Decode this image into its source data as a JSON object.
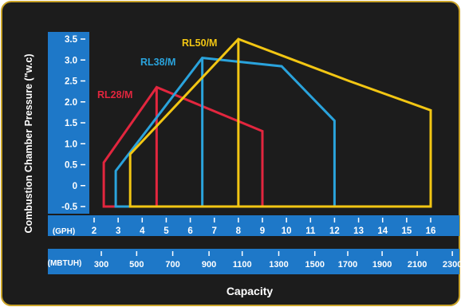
{
  "chart_data": {
    "type": "area",
    "ylabel": "Combustion Chamber Pressure (\"w.c)",
    "xlabel": "Capacity",
    "x_axis_label": "(GPH)",
    "x2_axis_label": "(MBTUH)",
    "yticks": [
      "3.5",
      "3.0",
      "2.5",
      "2.0",
      "1.5",
      "1.0",
      "0.5",
      "0",
      "-0.5"
    ],
    "ytick_values": [
      3.5,
      3.0,
      2.5,
      2.0,
      1.5,
      1.0,
      0.5,
      0,
      -0.5
    ],
    "ylim": [
      -0.5,
      3.5
    ],
    "xticks": [
      "2",
      "3",
      "4",
      "5",
      "6",
      "7",
      "8",
      "9",
      "10",
      "11",
      "12",
      "13",
      "14",
      "15",
      "16"
    ],
    "xtick_values": [
      2,
      3,
      4,
      5,
      6,
      7,
      8,
      9,
      10,
      11,
      12,
      13,
      14,
      15,
      16
    ],
    "xlim": [
      2,
      16
    ],
    "x2ticks": [
      "300",
      "500",
      "700",
      "900",
      "1100",
      "1300",
      "1500",
      "1700",
      "1900",
      "2100",
      "2300"
    ],
    "x2tick_values": [
      2.3,
      3.77,
      5.27,
      6.78,
      8.16,
      9.68,
      11.18,
      12.55,
      13.98,
      15.44,
      16.9
    ],
    "series": [
      {
        "name": "RL28/M",
        "color": "#e2263e",
        "points": [
          [
            2.4,
            -0.5
          ],
          [
            2.4,
            0.55
          ],
          [
            4.6,
            2.35
          ],
          [
            9.0,
            1.3
          ],
          [
            9.0,
            -0.5
          ]
        ],
        "divider_x": 4.6
      },
      {
        "name": "RL38/M",
        "color": "#2aa3dc",
        "points": [
          [
            2.9,
            -0.5
          ],
          [
            2.9,
            0.35
          ],
          [
            6.5,
            3.05
          ],
          [
            9.8,
            2.85
          ],
          [
            12.0,
            1.55
          ],
          [
            12.0,
            -0.5
          ]
        ],
        "divider_x": 6.5
      },
      {
        "name": "RL50/M",
        "color": "#f2c613",
        "points": [
          [
            3.5,
            -0.5
          ],
          [
            3.5,
            0.75
          ],
          [
            8.0,
            3.5
          ],
          [
            12.6,
            2.5
          ],
          [
            16.0,
            1.8
          ],
          [
            16.0,
            -0.5
          ]
        ],
        "divider_x": 8.0
      }
    ],
    "series_labels": [
      {
        "text": "RL28/M",
        "color": "#e2263e"
      },
      {
        "text": "RL38/M",
        "color": "#2aa3dc"
      },
      {
        "text": "RL50/M",
        "color": "#f2c613"
      }
    ],
    "colors": {
      "frame_background": "#1c1c1c",
      "frame_border": "#c9a227",
      "axis_band": "#1e78c8",
      "axis_text": "#ffffff",
      "axis_title_text": "#ffffff"
    }
  }
}
